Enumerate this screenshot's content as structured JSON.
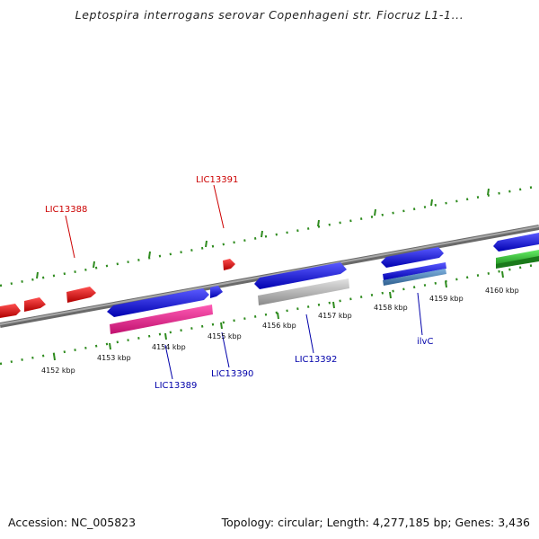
{
  "title": "Leptospira interrogans serovar Copenhageni str. Fiocruz L1-1...",
  "footer": {
    "accession": "Accession: NC_005823",
    "summary": "Topology: circular; Length: 4,277,185 bp; Genes: 3,436"
  },
  "colors": {
    "backbone": "#808080",
    "forward_ticks": "#2e8b1e",
    "red_gene": "#ff0000",
    "blue_gene": "#0000ff",
    "pink_gene": "#ff1493",
    "grey_gene": "#c0c0c0",
    "green_gene": "#32cd32",
    "steel_gene": "#4682b4",
    "label_red": "#cc0000",
    "label_blue": "#0000aa"
  },
  "scale_labels": [
    {
      "text": "4152 kbp"
    },
    {
      "text": "4153 kbp"
    },
    {
      "text": "4154 kbp"
    },
    {
      "text": "4155 kbp"
    },
    {
      "text": "4156 kbp"
    },
    {
      "text": "4157 kbp"
    },
    {
      "text": "4158 kbp"
    },
    {
      "text": "4159 kbp"
    },
    {
      "text": "4160 kbp"
    }
  ],
  "gene_labels": {
    "lic13388": "LIC13388",
    "lic13391": "LIC13391",
    "lic13389": "LIC13389",
    "lic13390": "LIC13390",
    "lic13392": "LIC13392",
    "ilvc": "ilvC"
  }
}
